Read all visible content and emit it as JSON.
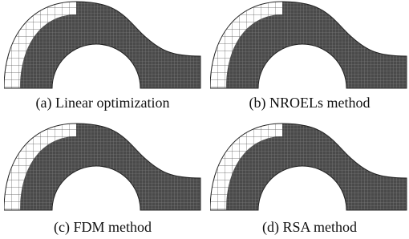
{
  "panels": [
    {
      "caption": "(a) Linear optimization"
    },
    {
      "caption": "(b) NROELs method"
    },
    {
      "caption": "(c) FDM method"
    },
    {
      "caption": "(d) RSA method"
    }
  ]
}
